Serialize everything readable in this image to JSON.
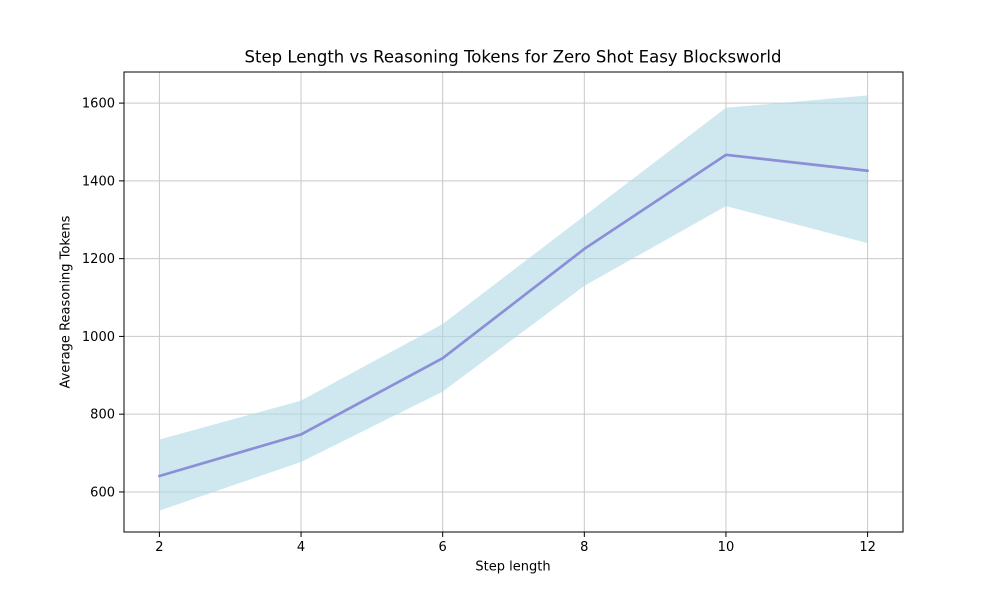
{
  "figure": {
    "background": "#ffffff"
  },
  "chart_data": {
    "type": "line",
    "title": "Step Length vs Reasoning Tokens for Zero Shot Easy Blocksworld",
    "xlabel": "Step length",
    "ylabel": "Average Reasoning Tokens",
    "x": [
      2,
      4,
      6,
      8,
      10,
      12
    ],
    "series": [
      {
        "name": "average reasoning tokens (mean)",
        "values": [
          641,
          748,
          944,
          1225,
          1467,
          1426
        ]
      }
    ],
    "band": {
      "name": "confidence band",
      "lower": [
        552,
        677,
        858,
        1130,
        1335,
        1240
      ],
      "upper": [
        735,
        835,
        1032,
        1310,
        1588,
        1620
      ]
    },
    "xticks": [
      2,
      4,
      6,
      8,
      10,
      12
    ],
    "yticks": [
      600,
      800,
      1000,
      1200,
      1400,
      1600
    ],
    "xlim": [
      1.5,
      12.5
    ],
    "ylim": [
      497,
      1680
    ],
    "grid": true,
    "legend": false,
    "colors": {
      "line": "#8b8fd8",
      "band": "rgba(173, 216, 230, 0.58)",
      "grid": "#c9c9c9",
      "spine": "#000000",
      "text": "#000000"
    }
  }
}
